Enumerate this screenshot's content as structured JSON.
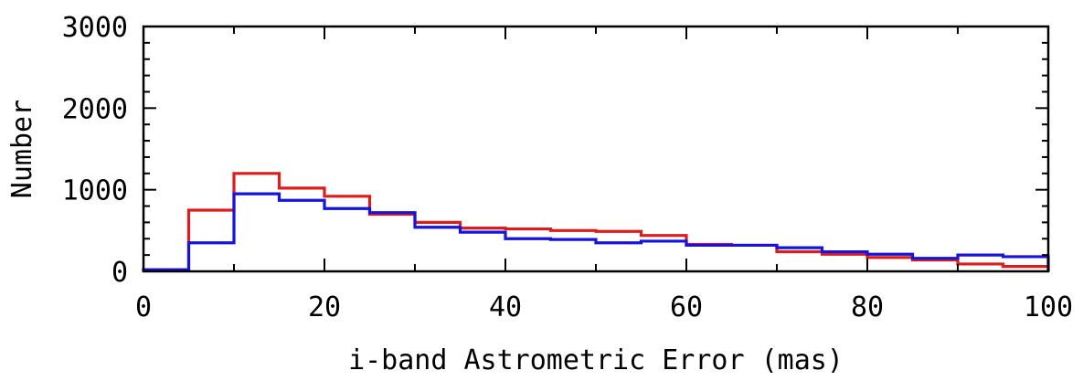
{
  "chart_data": {
    "type": "histogram",
    "title": "",
    "xlabel": "i-band Astrometric Error (mas)",
    "ylabel": "Number",
    "xlim": [
      0,
      100
    ],
    "ylim": [
      0,
      3000
    ],
    "bin_edges": [
      0,
      5,
      10,
      15,
      20,
      25,
      30,
      35,
      40,
      45,
      50,
      55,
      60,
      65,
      70,
      75,
      80,
      85,
      90,
      95,
      100
    ],
    "x_ticks_major": [
      0,
      20,
      40,
      60,
      80,
      100
    ],
    "x_ticks_minor": [
      10,
      30,
      50,
      70,
      90
    ],
    "y_ticks_major": [
      0,
      1000,
      2000,
      3000
    ],
    "x_tick_labels": [
      "0",
      "20",
      "40",
      "60",
      "80",
      "100"
    ],
    "y_tick_labels": [
      "0",
      "1000",
      "2000",
      "3000"
    ],
    "grid": false,
    "series": [
      {
        "color": "#dd1c1c",
        "values": [
          20,
          750,
          1200,
          1020,
          920,
          700,
          600,
          530,
          520,
          500,
          490,
          440,
          330,
          320,
          240,
          210,
          170,
          140,
          90,
          60
        ]
      },
      {
        "color": "#1414dd",
        "values": [
          20,
          350,
          950,
          870,
          770,
          720,
          540,
          480,
          400,
          390,
          350,
          370,
          320,
          320,
          290,
          240,
          210,
          160,
          200,
          180
        ]
      }
    ]
  }
}
